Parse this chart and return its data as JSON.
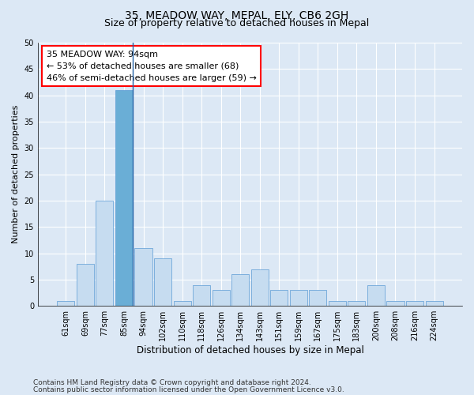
{
  "title1": "35, MEADOW WAY, MEPAL, ELY, CB6 2GH",
  "title2": "Size of property relative to detached houses in Mepal",
  "xlabel": "Distribution of detached houses by size in Mepal",
  "ylabel": "Number of detached properties",
  "categories": [
    "61sqm",
    "69sqm",
    "77sqm",
    "85sqm",
    "94sqm",
    "102sqm",
    "110sqm",
    "118sqm",
    "126sqm",
    "134sqm",
    "143sqm",
    "151sqm",
    "159sqm",
    "167sqm",
    "175sqm",
    "183sqm",
    "200sqm",
    "208sqm",
    "216sqm",
    "224sqm"
  ],
  "values": [
    1,
    8,
    20,
    41,
    11,
    9,
    1,
    4,
    3,
    6,
    7,
    3,
    3,
    3,
    1,
    1,
    4,
    1,
    1,
    1
  ],
  "highlight_index": 3,
  "highlight_color": "#6aaed6",
  "normal_color": "#c6dcf0",
  "bar_edge_color": "#5b9bd5",
  "highlight_line_color": "#2563a8",
  "annotation_text": "35 MEADOW WAY: 94sqm\n← 53% of detached houses are smaller (68)\n46% of semi-detached houses are larger (59) →",
  "annotation_box_facecolor": "white",
  "annotation_box_edgecolor": "red",
  "ylim": [
    0,
    50
  ],
  "yticks": [
    0,
    5,
    10,
    15,
    20,
    25,
    30,
    35,
    40,
    45,
    50
  ],
  "background_color": "#dce8f5",
  "plot_background": "#dce8f5",
  "grid_color": "white",
  "footer1": "Contains HM Land Registry data © Crown copyright and database right 2024.",
  "footer2": "Contains public sector information licensed under the Open Government Licence v3.0.",
  "title1_fontsize": 10,
  "title2_fontsize": 9,
  "xlabel_fontsize": 8.5,
  "ylabel_fontsize": 8,
  "tick_fontsize": 7,
  "annotation_fontsize": 8,
  "footer_fontsize": 6.5,
  "bar_width": 0.9
}
